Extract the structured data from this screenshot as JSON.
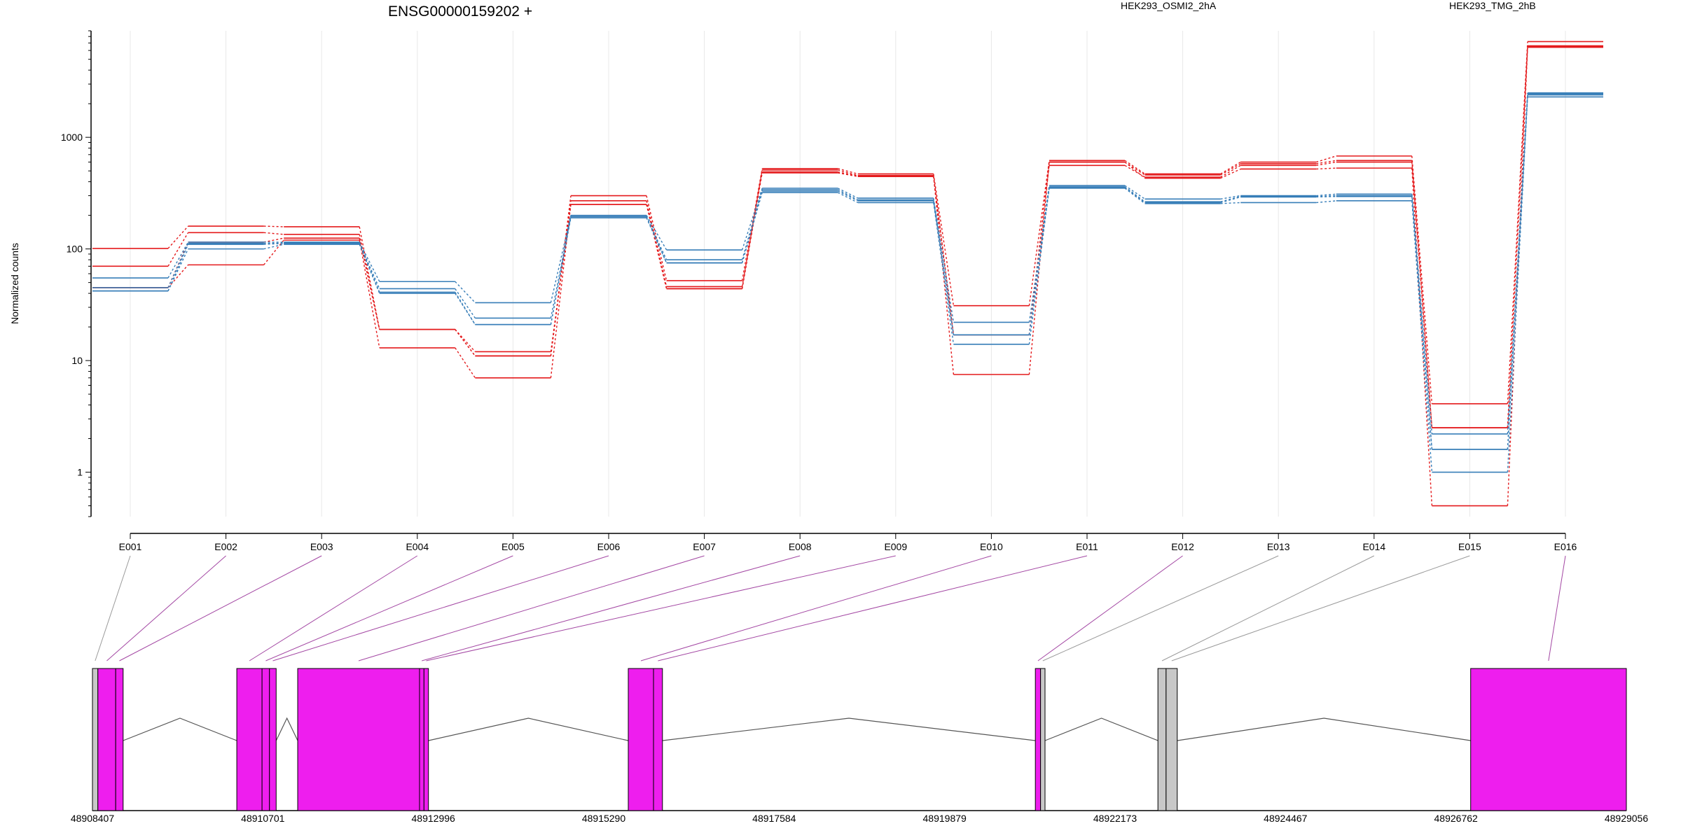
{
  "gene_title": "ENSG00000159202 +",
  "ylabel": "Normalized counts",
  "colors": {
    "groupA": "#e41a1c",
    "groupB": "#377eb8",
    "exon": "#ee1eee",
    "exon_excluded": "#c8c8c8",
    "grid": "#e8e8e8"
  },
  "chart_data": {
    "type": "line",
    "title": "ENSG00000159202 +",
    "ylabel": "Normalized counts",
    "yscale": "log",
    "ylim": [
      0.4,
      9000
    ],
    "y_ticks": [
      1,
      10,
      100,
      1000
    ],
    "y_tick_labels": [
      "1",
      "10",
      "100",
      "1000"
    ],
    "grid": true,
    "categories": [
      "E001",
      "E002",
      "E003",
      "E004",
      "E005",
      "E006",
      "E007",
      "E008",
      "E009",
      "E010",
      "E011",
      "E012",
      "E013",
      "E014",
      "E015",
      "E016"
    ],
    "legend": [
      {
        "label": "HEK293_OSMI2_2hA",
        "color": "#e41a1c"
      },
      {
        "label": "HEK293_TMG_2hB",
        "color": "#377eb8"
      }
    ],
    "series": [
      {
        "group": "HEK293_OSMI2_2hA",
        "color": "#e41a1c",
        "values": [
          101,
          160,
          158,
          19,
          11,
          300,
          52,
          525,
          470,
          31,
          620,
          470,
          600,
          680,
          4.1,
          7200
        ]
      },
      {
        "group": "HEK293_OSMI2_2hA",
        "color": "#e41a1c",
        "values": [
          70,
          140,
          135,
          19,
          11,
          270,
          46,
          510,
          455,
          17,
          600,
          460,
          580,
          620,
          2.5,
          6600
        ]
      },
      {
        "group": "HEK293_OSMI2_2hA",
        "color": "#e41a1c",
        "values": [
          45,
          115,
          125,
          19,
          12,
          250,
          44,
          480,
          445,
          17,
          560,
          440,
          560,
          600,
          2.5,
          6500
        ]
      },
      {
        "group": "HEK293_OSMI2_2hA",
        "color": "#e41a1c",
        "values": [
          45,
          72,
          120,
          13,
          7,
          250,
          44,
          490,
          450,
          7.5,
          600,
          430,
          520,
          530,
          0.5,
          6400
        ]
      },
      {
        "group": "HEK293_TMG_2hB",
        "color": "#377eb8",
        "values": [
          55,
          115,
          115,
          51,
          33,
          200,
          98,
          350,
          285,
          22,
          370,
          280,
          300,
          310,
          2.2,
          2500
        ]
      },
      {
        "group": "HEK293_TMG_2hB",
        "color": "#377eb8",
        "values": [
          45,
          112,
          113,
          44,
          24,
          195,
          80,
          340,
          275,
          17,
          360,
          265,
          295,
          300,
          1.6,
          2450
        ]
      },
      {
        "group": "HEK293_TMG_2hB",
        "color": "#377eb8",
        "values": [
          42,
          110,
          112,
          41,
          21,
          195,
          75,
          330,
          270,
          17,
          355,
          260,
          292,
          295,
          1.6,
          2400
        ]
      },
      {
        "group": "HEK293_TMG_2hB",
        "color": "#377eb8",
        "values": [
          42,
          100,
          110,
          40,
          21,
          190,
          75,
          320,
          260,
          14,
          350,
          255,
          260,
          270,
          1.0,
          2300
        ]
      }
    ]
  },
  "gene_model": {
    "axis_labels": [
      "48908407",
      "48910701",
      "48912996",
      "48915290",
      "48917584",
      "48919879",
      "48922173",
      "48924467",
      "48926762",
      "48929056"
    ],
    "coord_range": [
      48908407,
      48929056
    ],
    "exons": [
      {
        "id": "E001",
        "start": 48908407,
        "end": 48908480,
        "included": false
      },
      {
        "id": "E002",
        "start": 48908480,
        "end": 48908720,
        "included": true
      },
      {
        "id": "E003",
        "start": 48908720,
        "end": 48908820,
        "included": true
      },
      {
        "id": "E004",
        "start": 48910350,
        "end": 48910690,
        "included": true
      },
      {
        "id": "E005",
        "start": 48910690,
        "end": 48910790,
        "included": true
      },
      {
        "id": "E006",
        "start": 48910790,
        "end": 48910880,
        "included": true
      },
      {
        "id": "E007",
        "start": 48911170,
        "end": 48912810,
        "included": true
      },
      {
        "id": "E008",
        "start": 48912810,
        "end": 48912870,
        "included": true
      },
      {
        "id": "E009",
        "start": 48912870,
        "end": 48912930,
        "included": true
      },
      {
        "id": "E010",
        "start": 48915620,
        "end": 48915960,
        "included": true
      },
      {
        "id": "E011",
        "start": 48915960,
        "end": 48916080,
        "included": true
      },
      {
        "id": "E012",
        "start": 48921100,
        "end": 48921170,
        "included": true
      },
      {
        "id": "E013",
        "start": 48921170,
        "end": 48921230,
        "included": false
      },
      {
        "id": "E014",
        "start": 48922750,
        "end": 48922860,
        "included": false
      },
      {
        "id": "E015",
        "start": 48922860,
        "end": 48923010,
        "included": false
      },
      {
        "id": "E016",
        "start": 48926960,
        "end": 48929056,
        "included": true
      }
    ]
  }
}
